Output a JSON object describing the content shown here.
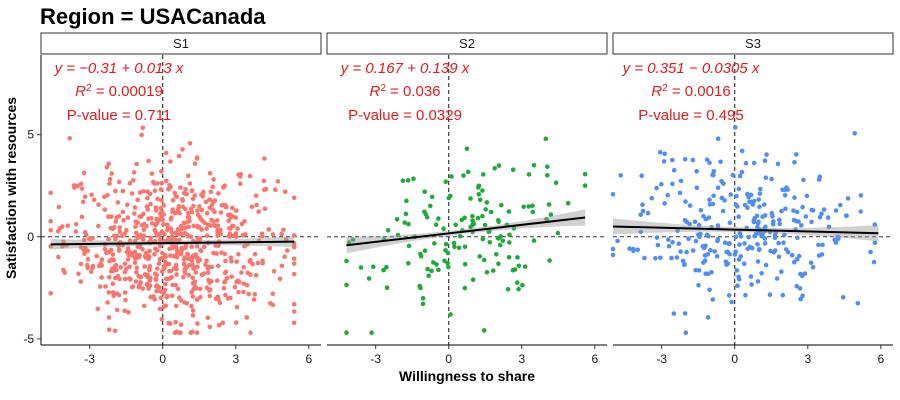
{
  "chart_data": {
    "type": "scatter",
    "title": "Region = USACanada",
    "xlabel": "Willingness to share",
    "ylabel": "Satisfaction with resources",
    "xlim": [
      -5.0,
      6.5
    ],
    "ylim": [
      -5.3,
      8.9
    ],
    "x_ticks": [
      -3,
      0,
      3,
      6
    ],
    "y_ticks": [
      -5,
      0,
      5
    ],
    "reference_lines": {
      "x": 0,
      "y": 0,
      "style": "dashed"
    },
    "grid": false,
    "legend": "none",
    "panels": [
      {
        "strip": "S1",
        "color": "#f8766d",
        "n_points": 700,
        "x_range": [
          -4.6,
          5.4
        ],
        "intercept": -0.31,
        "slope": 0.013,
        "annotation": {
          "equation": "y = −0.31 + 0.013 x",
          "r2_label": "R",
          "r2_value": " = 0.00019",
          "pvalue": "P-value = 0.711"
        }
      },
      {
        "strip": "S2",
        "color": "#1faa3a",
        "n_points": 150,
        "x_range": [
          -4.2,
          5.6
        ],
        "intercept": 0.167,
        "slope": 0.139,
        "annotation": {
          "equation": "y = 0.167 + 0.139 x",
          "r2_label": "R",
          "r2_value": " = 0.036",
          "pvalue": "P-value = 0.0329"
        }
      },
      {
        "strip": "S3",
        "color": "#4f8ef5",
        "n_points": 300,
        "x_range": [
          -5.0,
          5.9
        ],
        "intercept": 0.351,
        "slope": -0.0305,
        "annotation": {
          "equation": "y = 0.351 − 0.0305 x",
          "r2_label": "R",
          "r2_value": " = 0.0016",
          "pvalue": "P-value = 0.495"
        }
      }
    ]
  }
}
